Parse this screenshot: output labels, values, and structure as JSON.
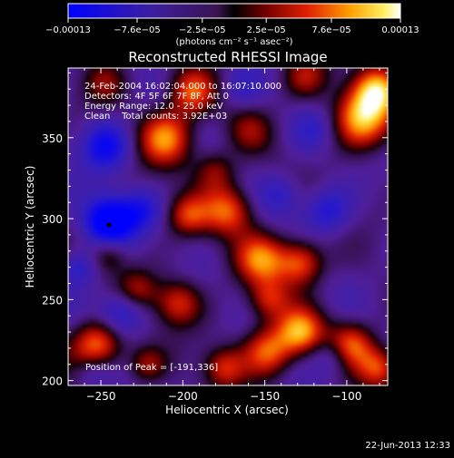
{
  "chart_data": {
    "type": "heatmap",
    "title": "Reconstructed RHESSI Image",
    "xlabel": "Heliocentric X (arcsec)",
    "ylabel": "Heliocentric Y (arcsec)",
    "xlim": [
      -270,
      -75
    ],
    "ylim": [
      197,
      393
    ],
    "xticks": [
      -250,
      -200,
      -150,
      -100
    ],
    "xtick_labels": [
      "−250",
      "−200",
      "−150",
      "−100"
    ],
    "yticks": [
      200,
      250,
      300,
      350
    ],
    "ytick_labels": [
      "200",
      "250",
      "300",
      "350"
    ],
    "colorbar": {
      "min": -0.00013,
      "max": 0.00013,
      "ticks": [
        -0.00013,
        -7.6e-05,
        -2.5e-05,
        2.5e-05,
        7.6e-05,
        0.00013
      ],
      "tick_labels": [
        "−0.00013",
        "−7.6e−05",
        "−2.5e−05",
        "2.5e−05",
        "7.6e−05",
        "0.00013"
      ],
      "unit_text": "(photons cm⁻² s⁻¹ asec⁻²)"
    },
    "annotations": {
      "time_range": "24-Feb-2004 16:02:04.000 to 16:07:10.000",
      "detectors": "Detectors: 4F 5F 6F 7F 8F, Att 0",
      "energy": "Energy Range: 12.0 - 25.0 keV",
      "clean": "Clean    Total counts: 3.92E+03",
      "peak": "Position of Peak = [-191,336]"
    },
    "peak": {
      "x": -191,
      "y": 336
    },
    "features": [
      {
        "x": -90,
        "y": 362,
        "amp": 1.0,
        "r": 13
      },
      {
        "x": -82,
        "y": 380,
        "amp": 0.8,
        "r": 10
      },
      {
        "x": -210,
        "y": 350,
        "amp": 0.85,
        "r": 12
      },
      {
        "x": -195,
        "y": 378,
        "amp": 0.7,
        "r": 10
      },
      {
        "x": -172,
        "y": 305,
        "amp": 0.75,
        "r": 11
      },
      {
        "x": -197,
        "y": 302,
        "amp": 0.6,
        "r": 9
      },
      {
        "x": -180,
        "y": 330,
        "amp": 0.45,
        "r": 9
      },
      {
        "x": -152,
        "y": 275,
        "amp": 0.75,
        "r": 11
      },
      {
        "x": -128,
        "y": 273,
        "amp": 0.8,
        "r": 10
      },
      {
        "x": -148,
        "y": 250,
        "amp": 0.55,
        "r": 9
      },
      {
        "x": -203,
        "y": 248,
        "amp": 0.65,
        "r": 10
      },
      {
        "x": -252,
        "y": 222,
        "amp": 0.9,
        "r": 11
      },
      {
        "x": -228,
        "y": 256,
        "amp": 0.5,
        "r": 9
      },
      {
        "x": -245,
        "y": 278,
        "amp": 0.45,
        "r": 8
      },
      {
        "x": -148,
        "y": 218,
        "amp": 0.8,
        "r": 11
      },
      {
        "x": -128,
        "y": 230,
        "amp": 0.85,
        "r": 10
      },
      {
        "x": -98,
        "y": 222,
        "amp": 0.8,
        "r": 10
      },
      {
        "x": -80,
        "y": 208,
        "amp": 0.7,
        "r": 9
      },
      {
        "x": -125,
        "y": 388,
        "amp": 0.5,
        "r": 10
      },
      {
        "x": -160,
        "y": 355,
        "amp": 0.35,
        "r": 10
      },
      {
        "x": -248,
        "y": 385,
        "amp": 0.4,
        "r": 10
      },
      {
        "x": -222,
        "y": 210,
        "amp": 0.45,
        "r": 8
      },
      {
        "x": -175,
        "y": 208,
        "amp": 0.6,
        "r": 9
      },
      {
        "x": -245,
        "y": 298,
        "amp": -1.0,
        "r": 11
      },
      {
        "x": -247,
        "y": 345,
        "amp": -0.65,
        "r": 11
      },
      {
        "x": -238,
        "y": 242,
        "amp": -0.6,
        "r": 10
      },
      {
        "x": -263,
        "y": 270,
        "amp": -0.45,
        "r": 8
      },
      {
        "x": -112,
        "y": 305,
        "amp": -0.5,
        "r": 10
      },
      {
        "x": -108,
        "y": 215,
        "amp": -0.45,
        "r": 9
      },
      {
        "x": -140,
        "y": 315,
        "amp": -0.35,
        "r": 9
      },
      {
        "x": -225,
        "y": 305,
        "amp": -0.4,
        "r": 9
      },
      {
        "x": -120,
        "y": 355,
        "amp": -0.3,
        "r": 10
      },
      {
        "x": -165,
        "y": 380,
        "amp": -0.3,
        "r": 9
      },
      {
        "x": -255,
        "y": 205,
        "amp": -0.3,
        "r": 8
      }
    ]
  },
  "footer": {
    "date": "22-Jun-2013 12:33"
  },
  "colors": {
    "background": "#000000",
    "text": "#ffffff"
  }
}
